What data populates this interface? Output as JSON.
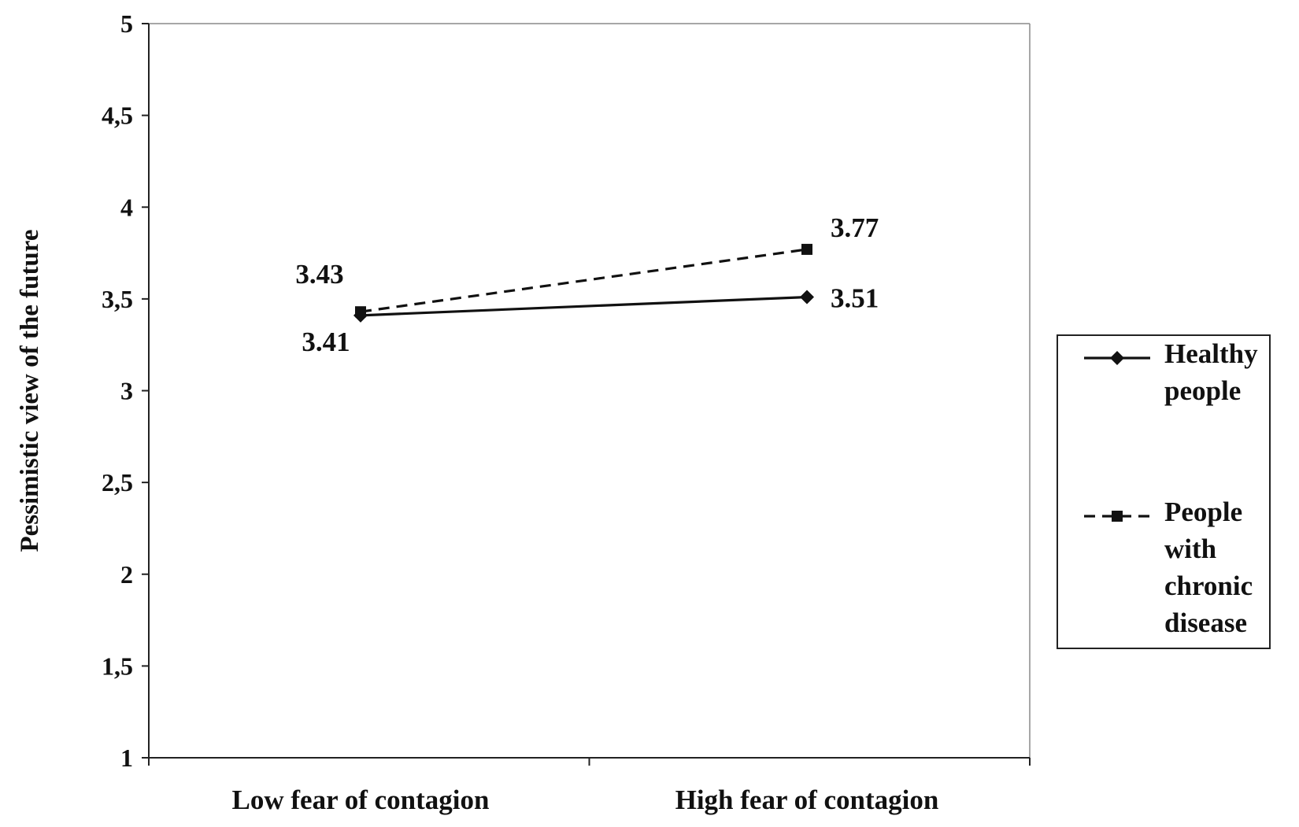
{
  "chart_data": {
    "type": "line",
    "title": "",
    "xlabel": "",
    "ylabel": "Pessimistic view of the future",
    "categories": [
      "Low fear of contagion",
      "High fear of contagion"
    ],
    "ylim": [
      1,
      5
    ],
    "yticks": [
      1,
      1.5,
      2,
      2.5,
      3,
      3.5,
      4,
      4.5,
      5
    ],
    "ytick_labels": [
      "1",
      "1,5",
      "2",
      "2,5",
      "3",
      "3,5",
      "4",
      "4,5",
      "5"
    ],
    "grid": false,
    "legend_position": "right",
    "series": [
      {
        "name": "Healthy people",
        "values": [
          3.41,
          3.51
        ],
        "value_labels": [
          "3.41",
          "3.51"
        ],
        "line_style": "solid",
        "marker": "diamond",
        "color": "#111111"
      },
      {
        "name": "People with chronic disease",
        "values": [
          3.43,
          3.77
        ],
        "value_labels": [
          "3.43",
          "3.77"
        ],
        "line_style": "dashed",
        "marker": "square",
        "color": "#111111"
      }
    ]
  }
}
